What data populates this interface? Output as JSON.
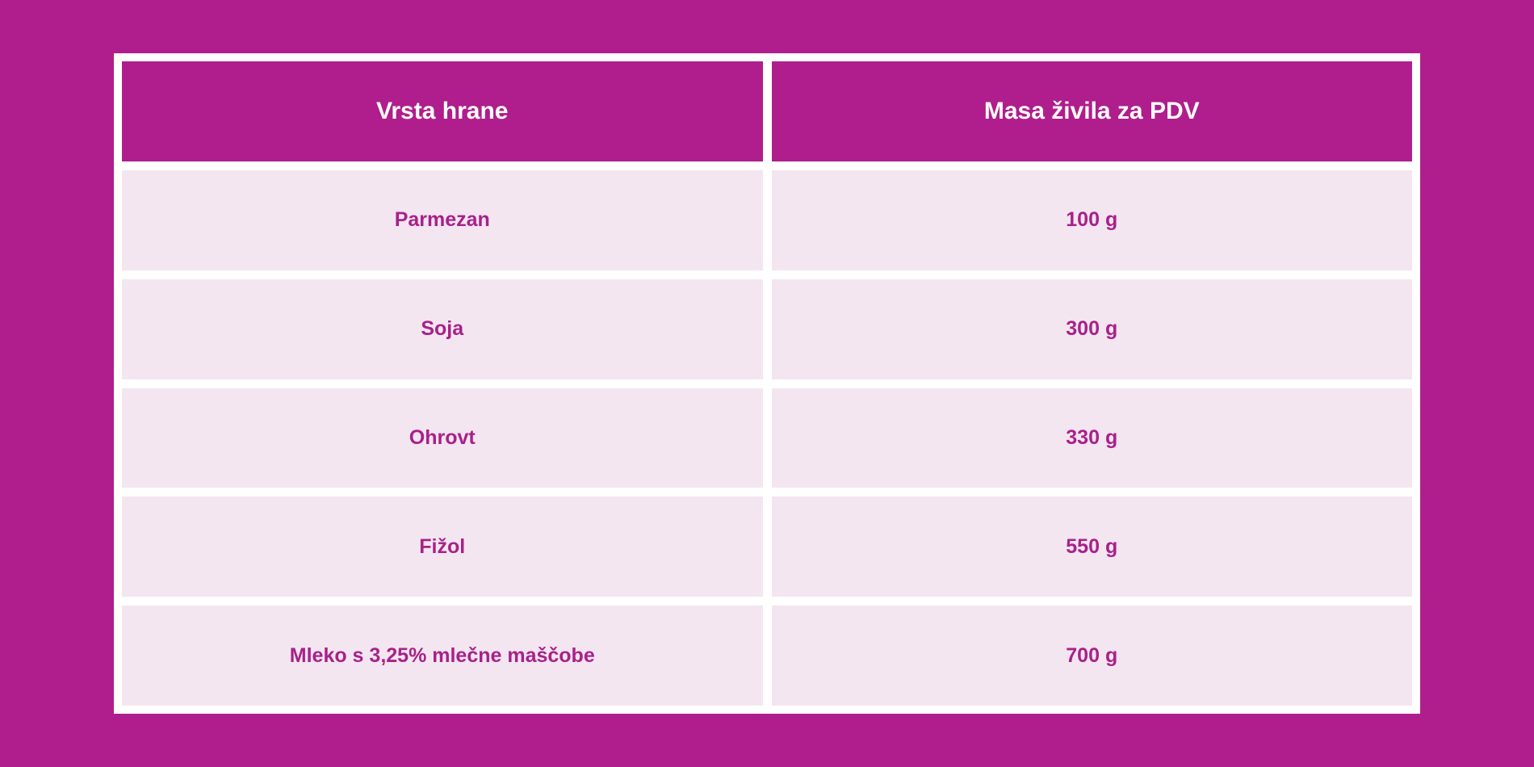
{
  "colors": {
    "background": "#AF1E8C",
    "header_bg": "#AF1E8C",
    "row_bg": "#F3E6F0",
    "text": "#A8218A"
  },
  "table": {
    "headers": [
      "Vrsta hrane",
      "Masa živila za PDV"
    ],
    "rows": [
      [
        "Parmezan",
        "100 g"
      ],
      [
        "Soja",
        "300 g"
      ],
      [
        "Ohrovt",
        "330 g"
      ],
      [
        "Fižol",
        "550 g"
      ],
      [
        "Mleko s 3,25% mlečne maščobe",
        "700 g"
      ]
    ]
  }
}
